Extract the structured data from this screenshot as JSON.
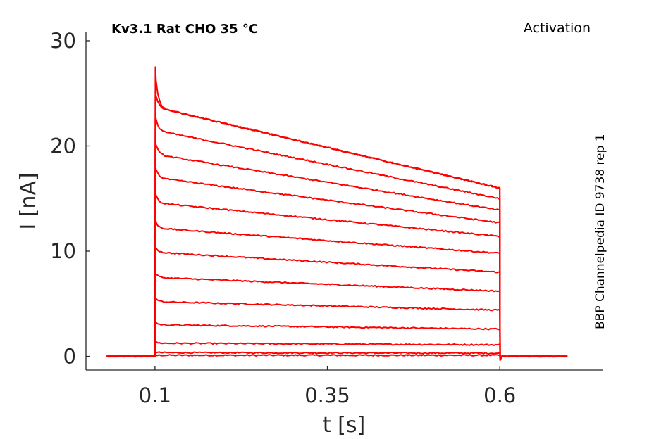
{
  "chart_data": {
    "type": "line",
    "title": "Kv3.1  Rat  CHO  35 °C",
    "protocol": "Activation",
    "source": "BBP Channelpedia ID 9738 rep 1",
    "xlabel": "t [s]",
    "ylabel": "I [nA]",
    "xticks": [
      "0.1",
      "0.35",
      "0.6"
    ],
    "yticks": [
      "0",
      "10",
      "20",
      "30"
    ],
    "xlim": [
      -0.0,
      0.75
    ],
    "ylim": [
      -1.3,
      30.8
    ],
    "trace_color": "#ff0000",
    "step_on": 0.1,
    "step_off": 0.6,
    "record_start": 0.03,
    "record_end": 0.7,
    "series": [
      {
        "peak": 0.1,
        "start": 0.1,
        "end": 0.1
      },
      {
        "peak": 0.4,
        "start": 0.35,
        "end": 0.3
      },
      {
        "peak": 1.4,
        "start": 1.25,
        "end": 1.1
      },
      {
        "peak": 3.3,
        "start": 3.0,
        "end": 2.6
      },
      {
        "peak": 5.6,
        "start": 5.2,
        "end": 4.4
      },
      {
        "peak": 8.0,
        "start": 7.5,
        "end": 6.2
      },
      {
        "peak": 10.5,
        "start": 9.9,
        "end": 8.0
      },
      {
        "peak": 13.0,
        "start": 12.2,
        "end": 9.8
      },
      {
        "peak": 15.6,
        "start": 14.6,
        "end": 11.4
      },
      {
        "peak": 18.2,
        "start": 17.0,
        "end": 12.7
      },
      {
        "peak": 20.6,
        "start": 19.2,
        "end": 13.9
      },
      {
        "peak": 23.0,
        "start": 21.5,
        "end": 15.0
      },
      {
        "peak": 25.2,
        "start": 23.7,
        "end": 16.0
      },
      {
        "peak": 27.5,
        "start": 23.7,
        "end": 16.0
      }
    ]
  }
}
